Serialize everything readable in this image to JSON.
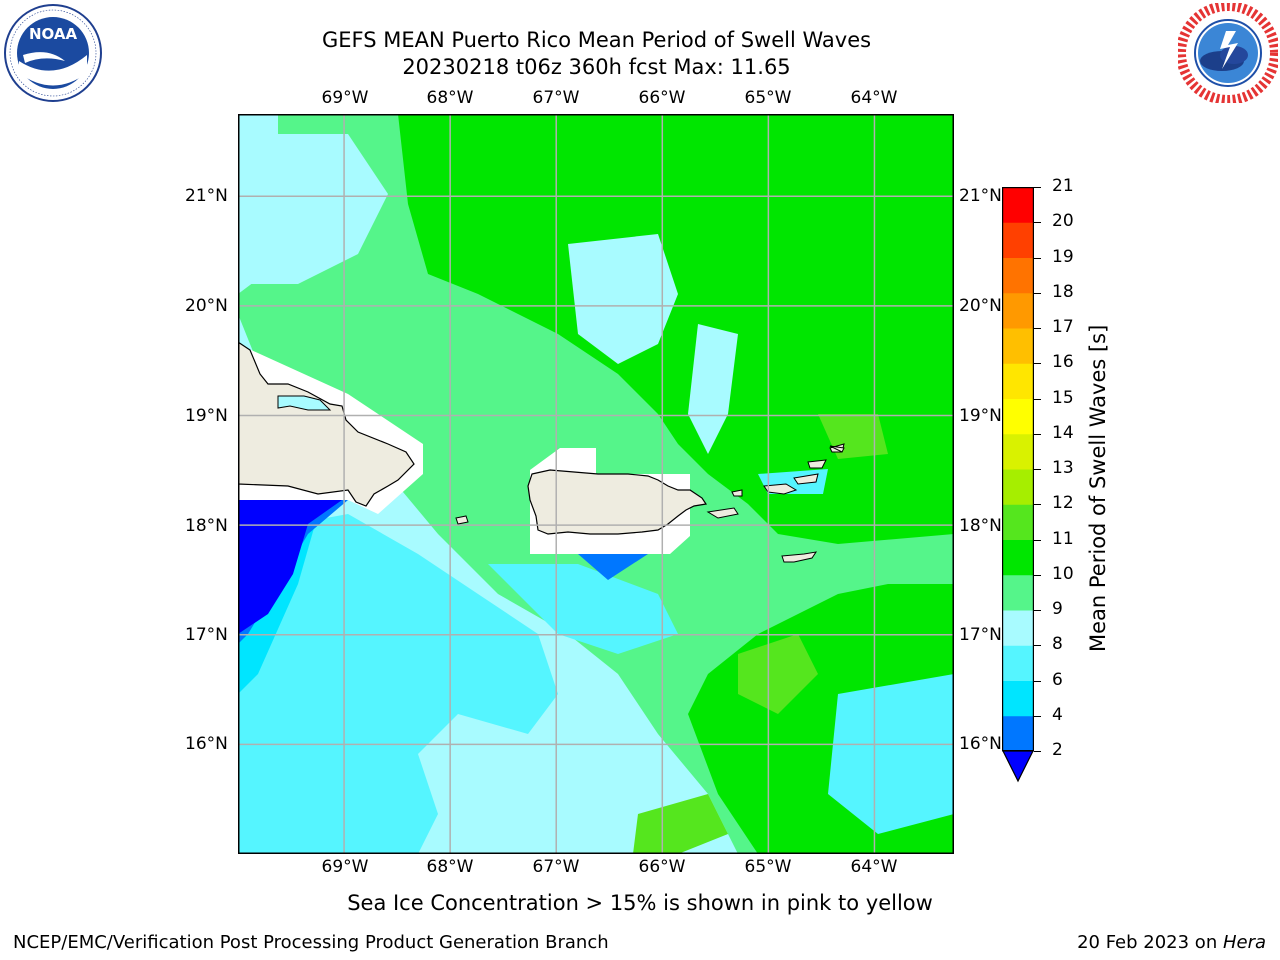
{
  "title": {
    "line1": "GEFS MEAN Puerto Rico Mean Period of Swell Waves",
    "line2": "20230218 t06z 360h fcst   Max: 11.65"
  },
  "logos": {
    "left": {
      "text": "NOAA",
      "ring_text": "NATIONAL OCEANIC AND ATMOSPHERIC ADMINISTRATION · U.S. DEPARTMENT OF COMMERCE",
      "icon": "noaa-logo"
    },
    "right": {
      "ring_text": "NATIONAL WEATHER SERVICE",
      "icon": "nws-logo"
    }
  },
  "map": {
    "lon_labels": [
      "69°W",
      "68°W",
      "67°W",
      "66°W",
      "65°W",
      "64°W"
    ],
    "lat_labels": [
      "21°N",
      "20°N",
      "19°N",
      "18°N",
      "17°N",
      "16°N"
    ],
    "lon_values": [
      -69,
      -68,
      -67,
      -66,
      -65,
      -64
    ],
    "lat_values": [
      21,
      20,
      19,
      18,
      17,
      16
    ],
    "extent": {
      "lon": [
        -70.0,
        -63.25
      ],
      "lat": [
        15.0,
        21.75
      ]
    },
    "gridlines": true
  },
  "colorbar": {
    "label": "Mean Period of Swell Waves [s]",
    "levels": [
      "21",
      "20",
      "19",
      "18",
      "17",
      "16",
      "15",
      "14",
      "13",
      "12",
      "11",
      "10",
      "9",
      "8",
      "6",
      "4",
      "2"
    ],
    "bands": [
      {
        "from": 2,
        "to": 4,
        "color": "#0077ff"
      },
      {
        "from": 4,
        "to": 6,
        "color": "#00e5ff"
      },
      {
        "from": 6,
        "to": 8,
        "color": "#55f5ff"
      },
      {
        "from": 8,
        "to": 9,
        "color": "#a8fbff"
      },
      {
        "from": 9,
        "to": 10,
        "color": "#55f58a"
      },
      {
        "from": 10,
        "to": 11,
        "color": "#00e600"
      },
      {
        "from": 11,
        "to": 12,
        "color": "#55e61e"
      },
      {
        "from": 12,
        "to": 13,
        "color": "#a6ee00"
      },
      {
        "from": 13,
        "to": 14,
        "color": "#d9f200"
      },
      {
        "from": 14,
        "to": 15,
        "color": "#ffff00"
      },
      {
        "from": 15,
        "to": 16,
        "color": "#ffe600"
      },
      {
        "from": 16,
        "to": 17,
        "color": "#ffbf00"
      },
      {
        "from": 17,
        "to": 18,
        "color": "#ff9900"
      },
      {
        "from": 18,
        "to": 19,
        "color": "#ff7300"
      },
      {
        "from": 19,
        "to": 20,
        "color": "#ff4000"
      },
      {
        "from": 20,
        "to": 21,
        "color": "#ff0000"
      }
    ],
    "under_color": "#0000ff"
  },
  "colors": {
    "land": "#eeece0",
    "no_data": "#ffffff",
    "grid": "#b0b0b0"
  },
  "caption": "Sea Ice Concentration > 15% is shown in pink to yellow",
  "footer": {
    "left": "NCEP/EMC/Verification Post Processing Product Generation Branch",
    "right_prefix": "20 Feb 2023 on ",
    "right_host": "Hera"
  }
}
